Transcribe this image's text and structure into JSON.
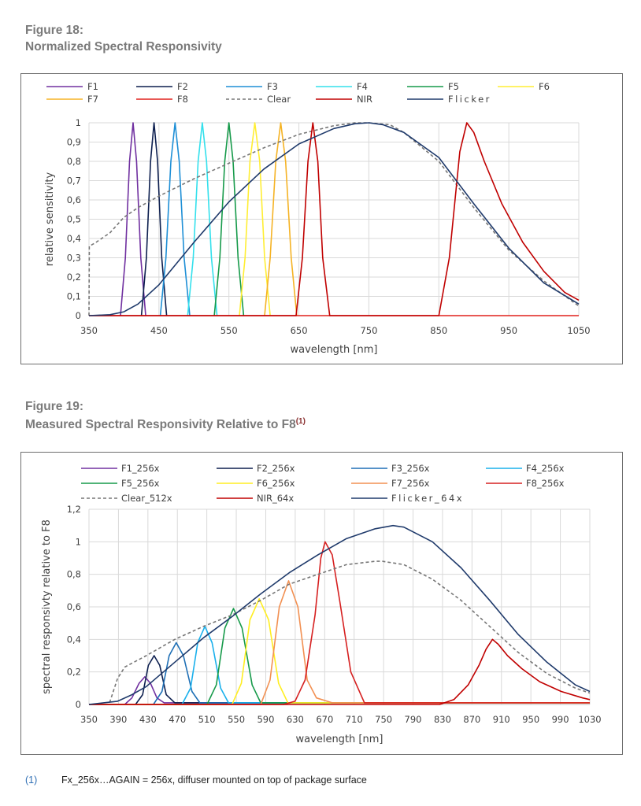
{
  "figure18": {
    "label": "Figure 18:",
    "title": "Normalized Spectral Responsivity"
  },
  "figure19": {
    "label": "Figure 19:",
    "title": "Measured Spectral Responsivity Relative to F8",
    "title_sup": "(1)"
  },
  "footnote": {
    "ref": "(1)",
    "text": "Fx_256x…AGAIN = 256x, diffuser mounted on top of package surface"
  },
  "chart_data": [
    {
      "type": "line",
      "xlabel": "wavelength [nm]",
      "ylabel": "relative sensitivity",
      "xlim": [
        350,
        1050
      ],
      "ylim": [
        0,
        1
      ],
      "x_ticks": [
        "350",
        "450",
        "550",
        "650",
        "750",
        "850",
        "950",
        "1050"
      ],
      "y_ticks": [
        "0",
        "0,1",
        "0,2",
        "0,3",
        "0,4",
        "0,5",
        "0,6",
        "0,7",
        "0,8",
        "0,9",
        "1"
      ],
      "grid": true,
      "legend_position": "top",
      "series": [
        {
          "name": "F1",
          "color": "#7030a0",
          "dash": false,
          "x": [
            395,
            402,
            408,
            413,
            418,
            424,
            431
          ],
          "y": [
            0,
            0.3,
            0.8,
            1,
            0.8,
            0.3,
            0
          ]
        },
        {
          "name": "F2",
          "color": "#0d1f4f",
          "dash": false,
          "x": [
            425,
            432,
            438,
            443,
            448,
            454,
            461
          ],
          "y": [
            0,
            0.3,
            0.8,
            1,
            0.8,
            0.3,
            0
          ]
        },
        {
          "name": "F3",
          "color": "#1e8fd6",
          "dash": false,
          "x": [
            452,
            460,
            467,
            473,
            479,
            486,
            494
          ],
          "y": [
            0,
            0.3,
            0.8,
            1,
            0.8,
            0.3,
            0
          ]
        },
        {
          "name": "F4",
          "color": "#33e0ec",
          "dash": false,
          "x": [
            491,
            499,
            506,
            512,
            518,
            525,
            533
          ],
          "y": [
            0,
            0.3,
            0.8,
            1,
            0.8,
            0.3,
            0
          ]
        },
        {
          "name": "F5",
          "color": "#169a4a",
          "dash": false,
          "x": [
            529,
            537,
            544,
            550,
            556,
            563,
            571
          ],
          "y": [
            0,
            0.3,
            0.8,
            1,
            0.8,
            0.3,
            0
          ]
        },
        {
          "name": "F6",
          "color": "#ffee33",
          "dash": false,
          "x": [
            565,
            573,
            580,
            587,
            594,
            601,
            609
          ],
          "y": [
            0,
            0.3,
            0.8,
            1,
            0.8,
            0.3,
            0
          ]
        },
        {
          "name": "F7",
          "color": "#f5b325",
          "dash": false,
          "x": [
            601,
            609,
            617,
            624,
            631,
            639,
            647
          ],
          "y": [
            0,
            0.3,
            0.8,
            1,
            0.8,
            0.3,
            0
          ]
        },
        {
          "name": "F8",
          "color": "#e0201b",
          "dash": false,
          "x": [
            350,
            1050
          ],
          "y": [
            0,
            0
          ]
        },
        {
          "name": "Clear",
          "color": "#777777",
          "dash": true,
          "x": [
            350,
            350.5,
            360,
            380,
            400,
            420,
            450,
            500,
            550,
            600,
            650,
            700,
            730,
            750,
            780,
            800,
            850,
            900,
            950,
            1000,
            1050
          ],
          "y": [
            0,
            0.36,
            0.38,
            0.43,
            0.51,
            0.56,
            0.62,
            0.71,
            0.79,
            0.87,
            0.94,
            0.985,
            1,
            1,
            0.99,
            0.95,
            0.8,
            0.56,
            0.34,
            0.18,
            0.05
          ]
        },
        {
          "name": "NIR",
          "color": "#c00000",
          "dash": false,
          "x": [
            350,
            646,
            655,
            663,
            670,
            677,
            684,
            694,
            705,
            850,
            865,
            880,
            890,
            900,
            915,
            940,
            970,
            1000,
            1030,
            1050
          ],
          "y": [
            0,
            0,
            0.3,
            0.8,
            1,
            0.8,
            0.3,
            0,
            0,
            0,
            0.3,
            0.85,
            1,
            0.95,
            0.8,
            0.58,
            0.38,
            0.23,
            0.12,
            0.08
          ]
        },
        {
          "name": "Flicker",
          "color": "#1f3a6b",
          "dash": false,
          "x": [
            350,
            380,
            400,
            420,
            450,
            500,
            550,
            600,
            650,
            700,
            730,
            750,
            770,
            800,
            850,
            900,
            950,
            1000,
            1050
          ],
          "y": [
            0,
            0.005,
            0.02,
            0.06,
            0.16,
            0.38,
            0.59,
            0.76,
            0.89,
            0.97,
            0.995,
            1,
            0.99,
            0.95,
            0.82,
            0.58,
            0.35,
            0.17,
            0.06
          ]
        }
      ]
    },
    {
      "type": "line",
      "xlabel": "wavelength [nm]",
      "ylabel": "spectral responsivty relative to F8",
      "xlim": [
        350,
        1050
      ],
      "ylim": [
        0,
        1.2
      ],
      "x_ticks": [
        "350",
        "390",
        "430",
        "470",
        "510",
        "550",
        "590",
        "630",
        "670",
        "710",
        "750",
        "790",
        "830",
        "870",
        "910",
        "950",
        "990",
        "1030"
      ],
      "y_ticks": [
        "0",
        "0,2",
        "0,4",
        "0,6",
        "0,8",
        "1",
        "1,2"
      ],
      "grid": true,
      "legend_position": "top",
      "series": [
        {
          "name": "F1_256x",
          "color": "#7030a0",
          "dash": false,
          "x": [
            350,
            400,
            410,
            420,
            428,
            436,
            445,
            455,
            1050
          ],
          "y": [
            0,
            0,
            0.04,
            0.13,
            0.17,
            0.13,
            0.04,
            0.01,
            0.01
          ]
        },
        {
          "name": "F2_256x",
          "color": "#0d1f4f",
          "dash": false,
          "x": [
            350,
            415,
            425,
            433,
            441,
            449,
            458,
            470,
            1050
          ],
          "y": [
            0,
            0,
            0.06,
            0.24,
            0.3,
            0.24,
            0.06,
            0.01,
            0.01
          ]
        },
        {
          "name": "F3_256x",
          "color": "#1e6fb5",
          "dash": false,
          "x": [
            350,
            440,
            452,
            462,
            472,
            482,
            494,
            505,
            1050
          ],
          "y": [
            0,
            0,
            0.08,
            0.3,
            0.38,
            0.3,
            0.08,
            0.01,
            0.01
          ]
        },
        {
          "name": "F4_256x",
          "color": "#1ab0ec",
          "dash": false,
          "x": [
            350,
            480,
            492,
            502,
            512,
            522,
            534,
            545,
            1050
          ],
          "y": [
            0,
            0,
            0.1,
            0.38,
            0.48,
            0.38,
            0.1,
            0.01,
            0.01
          ]
        },
        {
          "name": "F5_256x",
          "color": "#169a4a",
          "dash": false,
          "x": [
            350,
            515,
            528,
            540,
            552,
            564,
            578,
            590,
            1050
          ],
          "y": [
            0,
            0,
            0.12,
            0.47,
            0.59,
            0.47,
            0.12,
            0.01,
            0.01
          ]
        },
        {
          "name": "F6_256x",
          "color": "#ffee22",
          "dash": false,
          "x": [
            350,
            550,
            563,
            575,
            588,
            601,
            615,
            628,
            1050
          ],
          "y": [
            0,
            0,
            0.13,
            0.52,
            0.65,
            0.52,
            0.13,
            0.01,
            0.01
          ]
        },
        {
          "name": "F7_256x",
          "color": "#f29052",
          "dash": false,
          "x": [
            350,
            590,
            603,
            616,
            629,
            642,
            655,
            668,
            690,
            1050
          ],
          "y": [
            0,
            0,
            0.15,
            0.6,
            0.76,
            0.6,
            0.15,
            0.04,
            0.01,
            0.01
          ]
        },
        {
          "name": "F8_256x",
          "color": "#d62020",
          "dash": false,
          "x": [
            350,
            622,
            638,
            652,
            666,
            674,
            680,
            690,
            700,
            716,
            735,
            1050
          ],
          "y": [
            0,
            0,
            0.02,
            0.15,
            0.55,
            0.9,
            1.0,
            0.92,
            0.65,
            0.2,
            0.01,
            0.01
          ]
        },
        {
          "name": "Clear_512x",
          "color": "#777777",
          "dash": true,
          "x": [
            350,
            378,
            390,
            400,
            430,
            470,
            510,
            550,
            590,
            630,
            670,
            710,
            750,
            760,
            790,
            830,
            870,
            910,
            950,
            990,
            1030,
            1050
          ],
          "y": [
            0,
            0,
            0.16,
            0.23,
            0.3,
            0.4,
            0.48,
            0.55,
            0.64,
            0.74,
            0.8,
            0.86,
            0.88,
            0.88,
            0.86,
            0.77,
            0.64,
            0.48,
            0.32,
            0.19,
            0.1,
            0.07
          ]
        },
        {
          "name": "NIR_64x",
          "color": "#c00000",
          "dash": false,
          "x": [
            350,
            840,
            860,
            880,
            895,
            905,
            914,
            922,
            935,
            955,
            980,
            1010,
            1040,
            1050
          ],
          "y": [
            0,
            0,
            0.03,
            0.12,
            0.24,
            0.34,
            0.4,
            0.37,
            0.3,
            0.22,
            0.14,
            0.08,
            0.04,
            0.03
          ]
        },
        {
          "name": "Flicker_64x",
          "color": "#1f3a6b",
          "dash": false,
          "x": [
            350,
            390,
            410,
            430,
            470,
            510,
            550,
            590,
            630,
            670,
            710,
            750,
            775,
            790,
            830,
            870,
            910,
            950,
            990,
            1030,
            1050
          ],
          "y": [
            0,
            0.02,
            0.06,
            0.11,
            0.26,
            0.41,
            0.54,
            0.68,
            0.81,
            0.92,
            1.02,
            1.08,
            1.1,
            1.09,
            1.0,
            0.84,
            0.64,
            0.43,
            0.26,
            0.12,
            0.08
          ]
        }
      ]
    }
  ]
}
